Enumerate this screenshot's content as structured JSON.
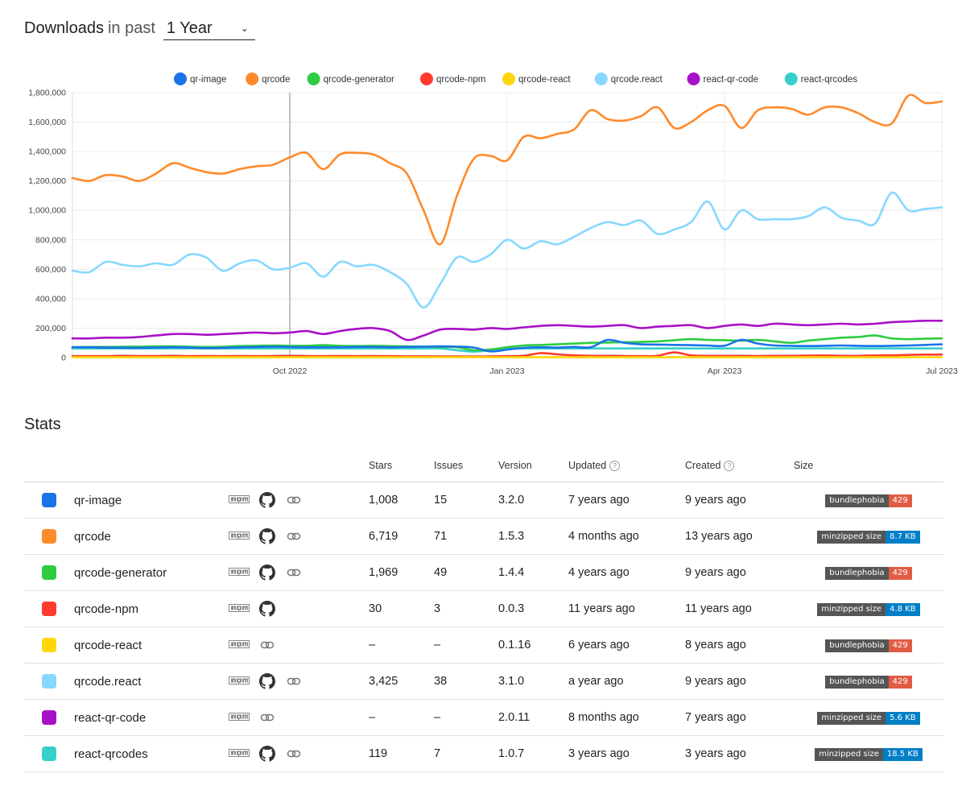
{
  "header": {
    "title": "Downloads",
    "subtitle": "in past",
    "period": "1 Year"
  },
  "colors": {
    "qr-image": "#1a73e8",
    "qrcode": "#ff8a2a",
    "qrcode-generator": "#2ecc40",
    "qrcode-npm": "#ff3b30",
    "qrcode-react": "#ffd60a",
    "qrcode.react": "#87d8ff",
    "react-qr-code": "#a810c7",
    "react-qrcodes": "#36cfc9",
    "bundlephobia_error": "#e05d44",
    "size_ok": "#007ec6"
  },
  "chart_data": {
    "type": "line",
    "title": "",
    "xlabel": "",
    "ylabel": "",
    "x_ticks": [
      {
        "label": "Oct 2022",
        "pos": 13
      },
      {
        "label": "Jan 2023",
        "pos": 26
      },
      {
        "label": "Apr 2023",
        "pos": 39
      },
      {
        "label": "Jul 2023",
        "pos": 52
      }
    ],
    "y_ticks": [
      "0",
      "200,000",
      "400,000",
      "600,000",
      "800,000",
      "1,000,000",
      "1,200,000",
      "1,400,000",
      "1,600,000",
      "1,800,000"
    ],
    "ylim": [
      0,
      1800000
    ],
    "xlim": [
      0,
      52
    ],
    "legend_position": "top",
    "series": [
      {
        "name": "qr-image",
        "color": "#1a73e8",
        "values": [
          70000,
          70000,
          68000,
          67000,
          66000,
          68000,
          70000,
          68000,
          64000,
          66000,
          70000,
          72000,
          74000,
          72000,
          70000,
          70000,
          70000,
          72000,
          72000,
          70000,
          72000,
          74000,
          76000,
          74000,
          68000,
          42000,
          54000,
          66000,
          70000,
          68000,
          72000,
          70000,
          120000,
          100000,
          90000,
          88000,
          86000,
          84000,
          82000,
          80000,
          120000,
          95000,
          82000,
          80000,
          78000,
          80000,
          82000,
          80000,
          78000,
          80000,
          82000,
          86000,
          90000
        ]
      },
      {
        "name": "qrcode",
        "color": "#ff8a2a",
        "values": [
          1220000,
          1200000,
          1240000,
          1230000,
          1200000,
          1250000,
          1320000,
          1290000,
          1260000,
          1250000,
          1280000,
          1300000,
          1310000,
          1360000,
          1390000,
          1280000,
          1380000,
          1390000,
          1380000,
          1320000,
          1250000,
          1000000,
          770000,
          1100000,
          1350000,
          1370000,
          1340000,
          1500000,
          1490000,
          1520000,
          1550000,
          1680000,
          1620000,
          1610000,
          1640000,
          1700000,
          1560000,
          1600000,
          1680000,
          1710000,
          1560000,
          1680000,
          1700000,
          1690000,
          1650000,
          1700000,
          1700000,
          1660000,
          1600000,
          1590000,
          1780000,
          1730000,
          1740000
        ]
      },
      {
        "name": "qrcode-generator",
        "color": "#2ecc40",
        "values": [
          70000,
          72000,
          72000,
          74000,
          74000,
          76000,
          76000,
          74000,
          72000,
          74000,
          78000,
          80000,
          82000,
          80000,
          80000,
          84000,
          80000,
          78000,
          80000,
          78000,
          76000,
          74000,
          72000,
          70000,
          50000,
          55000,
          70000,
          82000,
          86000,
          90000,
          95000,
          100000,
          102000,
          104000,
          106000,
          110000,
          118000,
          125000,
          120000,
          118000,
          115000,
          120000,
          110000,
          100000,
          115000,
          125000,
          135000,
          140000,
          150000,
          130000,
          125000,
          128000,
          130000
        ]
      },
      {
        "name": "qrcode-npm",
        "color": "#ff3b30",
        "values": [
          10000,
          10000,
          10000,
          12000,
          11000,
          11000,
          12000,
          10000,
          11000,
          10000,
          11000,
          10000,
          11000,
          12000,
          11000,
          10000,
          11000,
          10000,
          11000,
          10000,
          9000,
          9000,
          8000,
          8000,
          7000,
          8000,
          10000,
          12000,
          30000,
          22000,
          15000,
          12000,
          12000,
          11000,
          10000,
          12000,
          35000,
          15000,
          12000,
          12000,
          12000,
          11000,
          12000,
          12000,
          13000,
          14000,
          12000,
          12000,
          14000,
          15000,
          18000,
          20000,
          20000
        ]
      },
      {
        "name": "qrcode-react",
        "color": "#ffd60a",
        "values": [
          2000,
          2000,
          2000,
          2000,
          2000,
          2000,
          2000,
          2000,
          2000,
          2000,
          2000,
          2000,
          2000,
          2000,
          2000,
          2000,
          2000,
          2000,
          2000,
          2000,
          2000,
          2000,
          2000,
          2000,
          2000,
          2000,
          2000,
          2000,
          2000,
          2000,
          2000,
          2000,
          2000,
          2000,
          2000,
          2000,
          2000,
          2000,
          2000,
          2000,
          2000,
          2000,
          2000,
          2000,
          2000,
          2000,
          2000,
          2000,
          2000,
          2000,
          2000,
          2000,
          2000
        ]
      },
      {
        "name": "qrcode.react",
        "color": "#87d8ff",
        "values": [
          590000,
          580000,
          650000,
          630000,
          620000,
          640000,
          630000,
          700000,
          680000,
          590000,
          640000,
          660000,
          600000,
          610000,
          640000,
          550000,
          650000,
          620000,
          630000,
          580000,
          500000,
          340000,
          500000,
          680000,
          650000,
          700000,
          800000,
          740000,
          790000,
          770000,
          820000,
          880000,
          920000,
          900000,
          930000,
          840000,
          870000,
          920000,
          1060000,
          870000,
          1000000,
          940000,
          940000,
          940000,
          960000,
          1020000,
          950000,
          930000,
          910000,
          1120000,
          1000000,
          1010000,
          1020000
        ]
      },
      {
        "name": "react-qr-code",
        "color": "#a810c7",
        "values": [
          130000,
          130000,
          135000,
          135000,
          140000,
          150000,
          160000,
          160000,
          155000,
          160000,
          165000,
          170000,
          165000,
          170000,
          180000,
          160000,
          180000,
          195000,
          200000,
          180000,
          120000,
          150000,
          190000,
          195000,
          190000,
          200000,
          195000,
          205000,
          215000,
          220000,
          215000,
          210000,
          215000,
          220000,
          200000,
          210000,
          215000,
          220000,
          200000,
          215000,
          225000,
          215000,
          230000,
          225000,
          220000,
          225000,
          230000,
          225000,
          230000,
          240000,
          245000,
          250000,
          250000
        ]
      },
      {
        "name": "react-qrcodes",
        "color": "#36cfc9",
        "values": [
          62000,
          62000,
          62000,
          62000,
          62000,
          62000,
          62000,
          62000,
          62000,
          62000,
          62000,
          62000,
          62000,
          62000,
          62000,
          62000,
          62000,
          62000,
          62000,
          62000,
          62000,
          62000,
          62000,
          50000,
          40000,
          50000,
          62000,
          62000,
          62000,
          62000,
          62000,
          62000,
          62000,
          62000,
          62000,
          62000,
          62000,
          62000,
          62000,
          62000,
          62000,
          62000,
          62000,
          62000,
          62000,
          62000,
          62000,
          62000,
          62000,
          62000,
          62000,
          62000,
          62000
        ]
      }
    ]
  },
  "stats": {
    "title": "Stats",
    "columns": {
      "stars": "Stars",
      "issues": "Issues",
      "version": "Version",
      "updated": "Updated",
      "created": "Created",
      "size": "Size"
    },
    "rows": [
      {
        "name": "qr-image",
        "color": "#1a73e8",
        "links": [
          "npm",
          "github",
          "link"
        ],
        "stars": "1,008",
        "issues": "15",
        "version": "3.2.0",
        "updated": "7 years ago",
        "created": "9 years ago",
        "badge_label": "bundlephobia",
        "badge_value": "429",
        "badge_color": "#e05d44"
      },
      {
        "name": "qrcode",
        "color": "#ff8a2a",
        "links": [
          "npm",
          "github",
          "link"
        ],
        "stars": "6,719",
        "issues": "71",
        "version": "1.5.3",
        "updated": "4 months ago",
        "created": "13 years ago",
        "badge_label": "minzipped size",
        "badge_value": "8.7 KB",
        "badge_color": "#007ec6"
      },
      {
        "name": "qrcode-generator",
        "color": "#2ecc40",
        "links": [
          "npm",
          "github",
          "link"
        ],
        "stars": "1,969",
        "issues": "49",
        "version": "1.4.4",
        "updated": "4 years ago",
        "created": "9 years ago",
        "badge_label": "bundlephobia",
        "badge_value": "429",
        "badge_color": "#e05d44"
      },
      {
        "name": "qrcode-npm",
        "color": "#ff3b30",
        "links": [
          "npm",
          "github"
        ],
        "stars": "30",
        "issues": "3",
        "version": "0.0.3",
        "updated": "11 years ago",
        "created": "11 years ago",
        "badge_label": "minzipped size",
        "badge_value": "4.8 KB",
        "badge_color": "#007ec6"
      },
      {
        "name": "qrcode-react",
        "color": "#ffd60a",
        "links": [
          "npm",
          "link"
        ],
        "stars": "–",
        "issues": "–",
        "version": "0.1.16",
        "updated": "6 years ago",
        "created": "8 years ago",
        "badge_label": "bundlephobia",
        "badge_value": "429",
        "badge_color": "#e05d44"
      },
      {
        "name": "qrcode.react",
        "color": "#87d8ff",
        "links": [
          "npm",
          "github",
          "link"
        ],
        "stars": "3,425",
        "issues": "38",
        "version": "3.1.0",
        "updated": "a year ago",
        "created": "9 years ago",
        "badge_label": "bundlephobia",
        "badge_value": "429",
        "badge_color": "#e05d44"
      },
      {
        "name": "react-qr-code",
        "color": "#a810c7",
        "links": [
          "npm",
          "link"
        ],
        "stars": "–",
        "issues": "–",
        "version": "2.0.11",
        "updated": "8 months ago",
        "created": "7 years ago",
        "badge_label": "minzipped size",
        "badge_value": "5.6 KB",
        "badge_color": "#007ec6"
      },
      {
        "name": "react-qrcodes",
        "color": "#36cfc9",
        "links": [
          "npm",
          "github",
          "link"
        ],
        "stars": "119",
        "issues": "7",
        "version": "1.0.7",
        "updated": "3 years ago",
        "created": "3 years ago",
        "badge_label": "minzipped size",
        "badge_value": "18.5 KB",
        "badge_color": "#007ec6"
      }
    ]
  }
}
